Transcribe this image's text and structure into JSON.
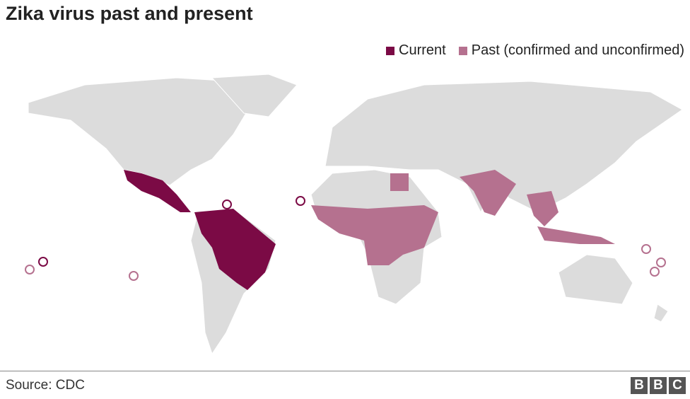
{
  "header": {
    "title": "Zika virus past and present"
  },
  "legend": [
    {
      "label": "Current",
      "color": "#7b0a45"
    },
    {
      "label": "Past (confirmed and unconfirmed)",
      "color": "#b5718f"
    }
  ],
  "footer": {
    "source": "Source: CDC",
    "logo": [
      "B",
      "B",
      "C"
    ]
  }
}
